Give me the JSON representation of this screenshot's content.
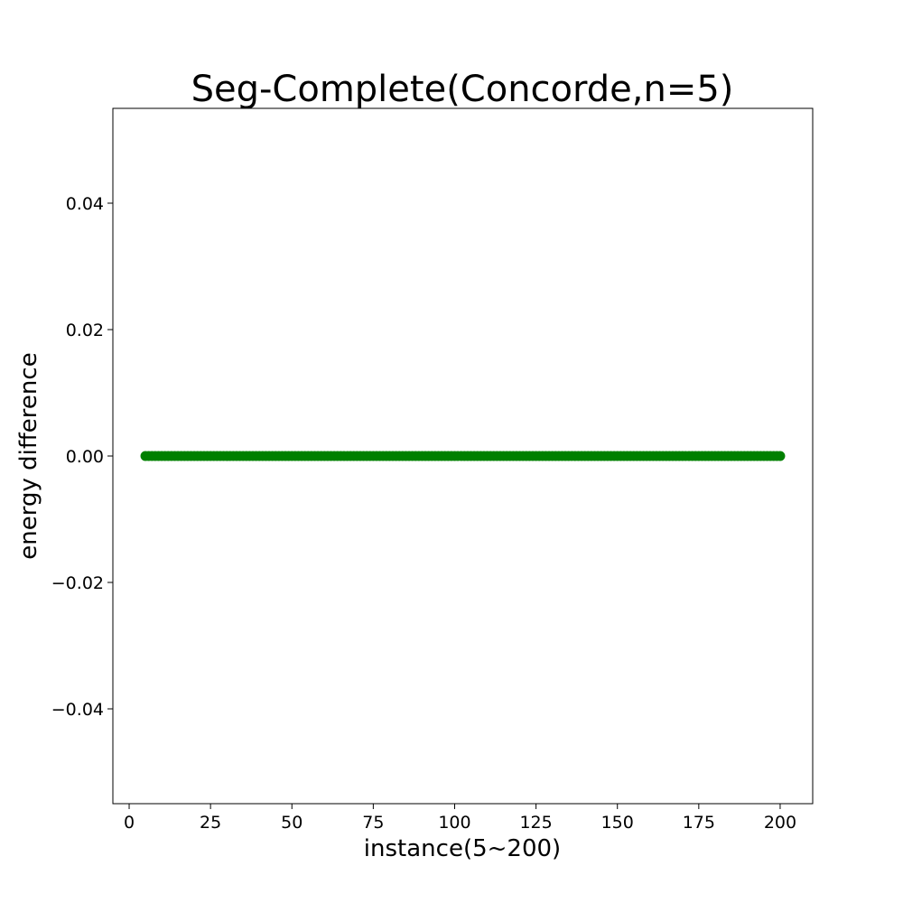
{
  "chart_data": {
    "type": "scatter",
    "title": "Seg-Complete(Concorde,n=5)",
    "xlabel": "instance(5~200)",
    "ylabel": "energy difference",
    "xlim": [
      -5,
      210
    ],
    "ylim": [
      -0.055,
      0.055
    ],
    "x_ticks": [
      0,
      25,
      50,
      75,
      100,
      125,
      150,
      175,
      200
    ],
    "x_tick_labels": [
      "0",
      "25",
      "50",
      "75",
      "100",
      "125",
      "150",
      "175",
      "200"
    ],
    "y_ticks": [
      0.04,
      0.02,
      0.0,
      -0.02,
      -0.04
    ],
    "y_tick_labels": [
      "0.04",
      "0.02",
      "0.00",
      "−0.02",
      "−0.04"
    ],
    "grid": false,
    "series": [
      {
        "color": "#008000",
        "x_range": [
          5,
          200
        ],
        "x_step": 1,
        "y_value": 0.0
      }
    ]
  }
}
